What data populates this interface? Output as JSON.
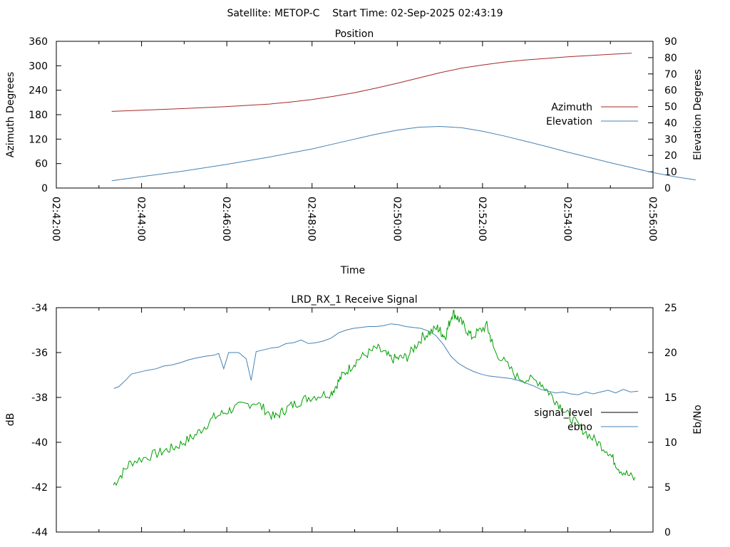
{
  "header": {
    "text": "Satellite: METOP-C    Start Time: 02-Sep-2025 02:43:19"
  },
  "chart_data": [
    {
      "type": "line",
      "title": "Position",
      "xlabel": "Time",
      "ylabel": "Azimuth Degrees",
      "y2label": "Elevation Degrees",
      "x_ticks": [
        "02:42:00",
        "02:44:00",
        "02:46:00",
        "02:48:00",
        "02:50:00",
        "02:52:00",
        "02:54:00",
        "02:56:00"
      ],
      "x_range_minutes": [
        0,
        14
      ],
      "ylim": [
        0,
        360
      ],
      "y_ticks": [
        "0",
        "60",
        "120",
        "180",
        "240",
        "300",
        "360"
      ],
      "y2lim": [
        0,
        90
      ],
      "y2_ticks": [
        "0",
        "10",
        "20",
        "30",
        "40",
        "50",
        "60",
        "70",
        "80",
        "90"
      ],
      "legend_placement": "right",
      "series": [
        {
          "name": "Azimuth",
          "axis": "y",
          "color": "#a52a2a",
          "points": [
            [
              1.3,
              188
            ],
            [
              2,
              191
            ],
            [
              3,
              195
            ],
            [
              4,
              200
            ],
            [
              5,
              206
            ],
            [
              5.5,
              211
            ],
            [
              6,
              217
            ],
            [
              6.5,
              225
            ],
            [
              7,
              234
            ],
            [
              7.5,
              245
            ],
            [
              8,
              257
            ],
            [
              8.5,
              270
            ],
            [
              9,
              283
            ],
            [
              9.5,
              294
            ],
            [
              10,
              302
            ],
            [
              10.5,
              309
            ],
            [
              11,
              314
            ],
            [
              11.5,
              318
            ],
            [
              12,
              322
            ],
            [
              12.5,
              325
            ],
            [
              13,
              328
            ],
            [
              13.5,
              331
            ]
          ]
        },
        {
          "name": "Elevation",
          "axis": "y2",
          "color": "#4682b4",
          "points": [
            [
              1.3,
              4.5
            ],
            [
              2,
              7
            ],
            [
              3,
              10.5
            ],
            [
              4,
              14.5
            ],
            [
              5,
              19
            ],
            [
              6,
              24
            ],
            [
              6.5,
              27
            ],
            [
              7,
              30
            ],
            [
              7.5,
              33
            ],
            [
              8,
              35.5
            ],
            [
              8.5,
              37.3
            ],
            [
              9,
              37.8
            ],
            [
              9.5,
              37
            ],
            [
              10,
              34.8
            ],
            [
              10.5,
              32
            ],
            [
              11,
              28.8
            ],
            [
              11.5,
              25.5
            ],
            [
              12,
              22
            ],
            [
              12.5,
              18.8
            ],
            [
              13,
              15.5
            ],
            [
              13.5,
              12.5
            ],
            [
              14,
              9.5
            ],
            [
              14.5,
              7
            ],
            [
              15,
              5
            ]
          ]
        }
      ]
    },
    {
      "type": "line",
      "title": "LRD_RX_1 Receive Signal",
      "ylabel": "dB",
      "y2label": "Eb/No",
      "ylim": [
        -44,
        -34
      ],
      "y_ticks": [
        "-44",
        "-42",
        "-40",
        "-38",
        "-36",
        "-34"
      ],
      "y2lim": [
        0,
        25
      ],
      "y2_ticks": [
        "0",
        "5",
        "10",
        "15",
        "20",
        "25"
      ],
      "legend_placement": "right",
      "series": [
        {
          "name": "signal_level",
          "axis": "y",
          "color": "#000000",
          "points": []
        },
        {
          "name": "ebno",
          "axis": "y2",
          "color": "#4682b4",
          "points": [
            [
              1.3,
              16
            ],
            [
              1.5,
              16.2
            ],
            [
              1.8,
              17
            ],
            [
              2,
              17.6
            ],
            [
              2.3,
              17.8
            ],
            [
              2.6,
              18
            ],
            [
              3,
              18.2
            ],
            [
              3.3,
              18.5
            ],
            [
              3.6,
              18.6
            ],
            [
              4,
              18.9
            ],
            [
              4.3,
              19.2
            ],
            [
              4.6,
              19.4
            ],
            [
              5,
              19.6
            ],
            [
              5.3,
              19.7
            ],
            [
              5.5,
              19.9
            ],
            [
              5.7,
              18.2
            ],
            [
              5.9,
              20
            ],
            [
              6.3,
              20
            ],
            [
              6.6,
              19.3
            ],
            [
              6.8,
              16.9
            ],
            [
              7,
              20.1
            ],
            [
              7.3,
              20.3
            ],
            [
              7.6,
              20.5
            ],
            [
              7.9,
              20.6
            ],
            [
              8.2,
              21
            ],
            [
              8.5,
              21.1
            ],
            [
              8.8,
              21.4
            ],
            [
              9.1,
              21
            ],
            [
              9.4,
              21.1
            ],
            [
              9.7,
              21.3
            ],
            [
              10,
              21.6
            ],
            [
              10.3,
              22.2
            ],
            [
              10.6,
              22.5
            ],
            [
              10.9,
              22.7
            ],
            [
              11.2,
              22.8
            ],
            [
              11.5,
              22.9
            ],
            [
              11.8,
              22.9
            ],
            [
              12.1,
              23
            ],
            [
              12.4,
              23.2
            ],
            [
              12.7,
              23.1
            ],
            [
              13,
              22.9
            ],
            [
              13.3,
              22.8
            ],
            [
              13.6,
              22.7
            ],
            [
              13.9,
              22.4
            ],
            [
              14.2,
              21.9
            ],
            [
              14.5,
              20.9
            ],
            [
              14.8,
              19.6
            ],
            [
              15.1,
              18.8
            ],
            [
              15.4,
              18.3
            ],
            [
              15.7,
              17.9
            ],
            [
              16,
              17.6
            ],
            [
              16.3,
              17.4
            ],
            [
              16.6,
              17.3
            ],
            [
              16.9,
              17.2
            ],
            [
              17.2,
              17.1
            ],
            [
              17.5,
              16.9
            ],
            [
              17.8,
              16.6
            ],
            [
              18.1,
              16.3
            ],
            [
              18.4,
              15.9
            ],
            [
              18.7,
              15.7
            ],
            [
              19,
              15.5
            ],
            [
              19.3,
              15.6
            ],
            [
              19.6,
              15.4
            ],
            [
              19.9,
              15.3
            ],
            [
              20.2,
              15.6
            ],
            [
              20.5,
              15.4
            ],
            [
              20.8,
              15.6
            ],
            [
              21.1,
              15.8
            ],
            [
              21.4,
              15.5
            ],
            [
              21.7,
              15.9
            ],
            [
              22,
              15.6
            ],
            [
              22.3,
              15.7
            ]
          ]
        }
      ]
    }
  ]
}
